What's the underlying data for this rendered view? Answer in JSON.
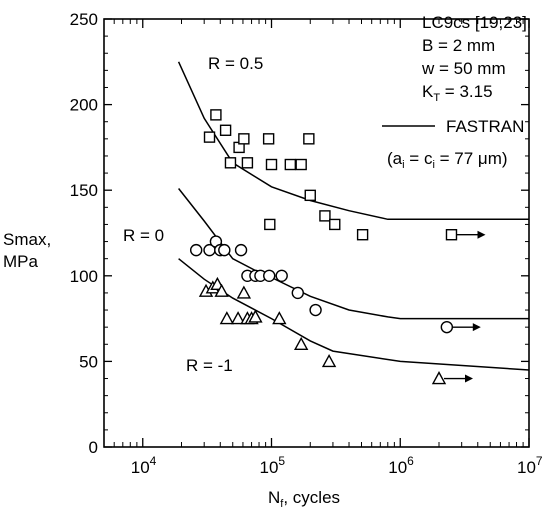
{
  "chart_data": {
    "type": "scatter",
    "xscale": "log",
    "xlim": [
      5000,
      10000000
    ],
    "ylim": [
      0,
      250
    ],
    "yticks": [
      0,
      50,
      100,
      150,
      200,
      250
    ],
    "xtick_exponents": [
      4,
      5,
      6,
      7
    ],
    "xtick_base": "10",
    "ylabel": [
      "Smax,",
      "MPa"
    ],
    "xlabel": {
      "main": "N",
      "sub": "f",
      "rest": ", cycles"
    },
    "info": {
      "material": "LC9cs [19,23]",
      "thickness": "B = 2 mm",
      "width": "w = 50 mm",
      "kt_main": "K",
      "kt_sub": "T",
      "kt_rest": " = 3.15",
      "model": "FASTRAN",
      "crack": {
        "p1": "(a",
        "s1": "i",
        "p2": " = c",
        "s2": "i",
        "p3": " = 77 μm)"
      }
    },
    "curve_labels": {
      "r05": "R = 0.5",
      "r0": "R = 0",
      "rm1": "R = -1"
    },
    "series": [
      {
        "marker": "square",
        "points": [
          [
            33000,
            181
          ],
          [
            37000,
            194
          ],
          [
            44000,
            185
          ],
          [
            48000,
            166
          ],
          [
            56000,
            175
          ],
          [
            61000,
            180
          ],
          [
            65000,
            166
          ],
          [
            95000,
            180
          ],
          [
            100000,
            165
          ],
          [
            140000,
            165
          ],
          [
            170000,
            165
          ],
          [
            195000,
            180
          ],
          [
            200000,
            147
          ],
          [
            97000,
            130
          ],
          [
            260000,
            135
          ],
          [
            310000,
            130
          ],
          [
            510000,
            124
          ]
        ],
        "runouts": [
          [
            2500000,
            124
          ]
        ],
        "curve": [
          [
            19000,
            225
          ],
          [
            30000,
            192
          ],
          [
            50000,
            166
          ],
          [
            100000,
            152
          ],
          [
            200000,
            144
          ],
          [
            400000,
            138
          ],
          [
            800000,
            133
          ],
          [
            1000000,
            133
          ],
          [
            10000000,
            133
          ]
        ]
      },
      {
        "marker": "circle",
        "points": [
          [
            26000,
            115
          ],
          [
            33000,
            115
          ],
          [
            37000,
            120
          ],
          [
            40000,
            115
          ],
          [
            43000,
            115
          ],
          [
            58000,
            115
          ],
          [
            65000,
            100
          ],
          [
            75000,
            100
          ],
          [
            82000,
            100
          ],
          [
            96000,
            100
          ],
          [
            120000,
            100
          ],
          [
            160000,
            90
          ],
          [
            220000,
            80
          ]
        ],
        "runouts": [
          [
            2300000,
            70
          ]
        ],
        "curve": [
          [
            19000,
            151
          ],
          [
            30000,
            132
          ],
          [
            50000,
            110
          ],
          [
            80000,
            102
          ],
          [
            100000,
            99
          ],
          [
            200000,
            88
          ],
          [
            400000,
            80
          ],
          [
            800000,
            76
          ],
          [
            1000000,
            75
          ],
          [
            10000000,
            75
          ]
        ]
      },
      {
        "marker": "triangle",
        "points": [
          [
            31000,
            91
          ],
          [
            35000,
            93
          ],
          [
            38000,
            95
          ],
          [
            41000,
            91
          ],
          [
            45000,
            75
          ],
          [
            55000,
            75
          ],
          [
            61000,
            90
          ],
          [
            65000,
            75
          ],
          [
            70000,
            75
          ],
          [
            75000,
            76
          ],
          [
            115000,
            75
          ],
          [
            170000,
            60
          ],
          [
            280000,
            50
          ]
        ],
        "runouts": [
          [
            2000000,
            40
          ]
        ],
        "curve": [
          [
            19000,
            110
          ],
          [
            30000,
            98
          ],
          [
            50000,
            87
          ],
          [
            100000,
            75
          ],
          [
            200000,
            62
          ],
          [
            300000,
            56
          ],
          [
            1000000,
            50
          ],
          [
            10000000,
            45
          ]
        ]
      }
    ]
  }
}
